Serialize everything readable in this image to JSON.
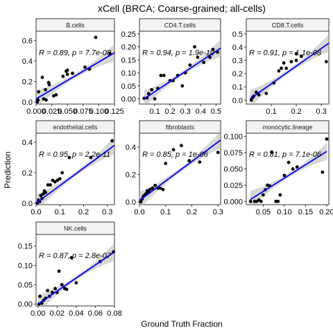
{
  "chart_data": {
    "type": "scatter",
    "title": "xCell (BRCA; Coarse-grained; all-cells)",
    "xlabel": "Ground Truth Fraction",
    "ylabel": "Prediction",
    "fit_color": "#0000ee",
    "point_color": "#000000",
    "band_color": "#bdbdbd",
    "strip_fill": "#f2f2f2",
    "panels": [
      {
        "label": "B.cells",
        "annotation": "R = 0.89, p = 7.7e-08",
        "xlim": [
          0.0,
          0.125
        ],
        "ylim": [
          -0.02,
          0.69
        ],
        "xticks": [
          0.0,
          0.025,
          0.05,
          0.075,
          0.1,
          0.125
        ],
        "xtick_labels": [
          "0.000",
          "0.025",
          "0.050",
          "0.075",
          "0.100",
          "0.125"
        ],
        "yticks": [
          0.0,
          0.2,
          0.4,
          0.6
        ],
        "ytick_labels": [
          "0.0",
          "0.2",
          "0.4",
          "0.6"
        ],
        "fit": [
          [
            0.0,
            0.03
          ],
          [
            0.125,
            0.48
          ]
        ],
        "points": [
          [
            0.002,
            0.0
          ],
          [
            0.003,
            0.02
          ],
          [
            0.004,
            0.1
          ],
          [
            0.01,
            0.24
          ],
          [
            0.012,
            0.03
          ],
          [
            0.015,
            0.12
          ],
          [
            0.016,
            0.02
          ],
          [
            0.02,
            0.19
          ],
          [
            0.021,
            0.17
          ],
          [
            0.028,
            0.06
          ],
          [
            0.032,
            0.07
          ],
          [
            0.043,
            0.25
          ],
          [
            0.048,
            0.3
          ],
          [
            0.05,
            0.31
          ],
          [
            0.05,
            0.27
          ],
          [
            0.058,
            0.28
          ],
          [
            0.078,
            0.34
          ],
          [
            0.085,
            0.32
          ],
          [
            0.095,
            0.63
          ],
          [
            0.118,
            0.47
          ]
        ]
      },
      {
        "label": "CD4.T.cells",
        "annotation": "R = 0.94, p = 1.9e-10",
        "xlim": [
          0.0,
          0.53
        ],
        "ylim": [
          -0.02,
          0.26
        ],
        "xticks": [
          0.1,
          0.2,
          0.3,
          0.4,
          0.5
        ],
        "xtick_labels": [
          "0.1",
          "0.2",
          "0.3",
          "0.4",
          "0.5"
        ],
        "yticks": [
          0.0,
          0.05,
          0.1,
          0.15,
          0.2,
          0.25
        ],
        "ytick_labels": [
          "0.00",
          "0.05",
          "0.10",
          "0.15",
          "0.20",
          "0.25"
        ],
        "fit": [
          [
            0.03,
            0.0
          ],
          [
            0.53,
            0.195
          ]
        ],
        "points": [
          [
            0.03,
            0.002
          ],
          [
            0.05,
            0.004
          ],
          [
            0.06,
            0.02
          ],
          [
            0.08,
            0.035
          ],
          [
            0.1,
            0.0
          ],
          [
            0.12,
            0.04
          ],
          [
            0.14,
            0.09
          ],
          [
            0.16,
            0.09
          ],
          [
            0.2,
            0.07
          ],
          [
            0.22,
            0.07
          ],
          [
            0.25,
            0.09
          ],
          [
            0.28,
            0.05
          ],
          [
            0.3,
            0.1
          ],
          [
            0.33,
            0.13
          ],
          [
            0.36,
            0.2
          ],
          [
            0.38,
            0.16
          ],
          [
            0.42,
            0.14
          ],
          [
            0.46,
            0.16
          ],
          [
            0.48,
            0.19
          ],
          [
            0.51,
            0.18
          ]
        ]
      },
      {
        "label": "CD8.T.cells",
        "annotation": "R = 0.91, p = 1.1e-08",
        "xlim": [
          0.0,
          0.33
        ],
        "ylim": [
          -0.03,
          0.52
        ],
        "xticks": [
          0.1,
          0.2,
          0.3
        ],
        "xtick_labels": [
          "0.1",
          "0.2",
          "0.3"
        ],
        "yticks": [
          0.0,
          0.1,
          0.2,
          0.3,
          0.4,
          0.5
        ],
        "ytick_labels": [
          "0.0",
          "0.1",
          "0.2",
          "0.3",
          "0.4",
          "0.5"
        ],
        "fit": [
          [
            0.015,
            0.01
          ],
          [
            0.33,
            0.43
          ]
        ],
        "points": [
          [
            0.02,
            0.0
          ],
          [
            0.025,
            0.02
          ],
          [
            0.03,
            0.03
          ],
          [
            0.04,
            0.06
          ],
          [
            0.05,
            0.04
          ],
          [
            0.08,
            0.05
          ],
          [
            0.11,
            0.13
          ],
          [
            0.13,
            0.22
          ],
          [
            0.14,
            0.24
          ],
          [
            0.15,
            0.28
          ],
          [
            0.16,
            0.24
          ],
          [
            0.18,
            0.29
          ],
          [
            0.2,
            0.3
          ],
          [
            0.2,
            0.35
          ],
          [
            0.22,
            0.33
          ],
          [
            0.32,
            0.29
          ]
        ]
      },
      {
        "label": "endothelial.cells",
        "annotation": "R = 0.95, p = 2.2e-11",
        "xlim": [
          0.0,
          0.33
        ],
        "ylim": [
          -0.01,
          0.46
        ],
        "xticks": [
          0.0,
          0.1,
          0.2,
          0.3
        ],
        "xtick_labels": [
          "0.0",
          "0.1",
          "0.2",
          "0.3"
        ],
        "yticks": [
          0.0,
          0.2,
          0.4
        ],
        "ytick_labels": [
          "0.0",
          "0.2",
          "0.4"
        ],
        "fit": [
          [
            0.0,
            0.0
          ],
          [
            0.33,
            0.38
          ]
        ],
        "points": [
          [
            0.005,
            0.0
          ],
          [
            0.01,
            0.02
          ],
          [
            0.015,
            0.01
          ],
          [
            0.02,
            0.05
          ],
          [
            0.025,
            0.03
          ],
          [
            0.03,
            0.06
          ],
          [
            0.035,
            0.08
          ],
          [
            0.04,
            0.07
          ],
          [
            0.05,
            0.12
          ],
          [
            0.06,
            0.12
          ],
          [
            0.07,
            0.15
          ],
          [
            0.08,
            0.14
          ],
          [
            0.09,
            0.15
          ],
          [
            0.1,
            0.16
          ],
          [
            0.11,
            0.2
          ],
          [
            0.14,
            0.3
          ],
          [
            0.23,
            0.3
          ],
          [
            0.32,
            0.41
          ]
        ]
      },
      {
        "label": "fibroblasts",
        "annotation": "R = 0.85, p = 1e-06",
        "xlim": [
          0.0,
          0.31
        ],
        "ylim": [
          -0.02,
          0.5
        ],
        "xticks": [
          0.0,
          0.1,
          0.2,
          0.3
        ],
        "xtick_labels": [
          "0.0",
          "0.1",
          "0.2",
          "0.3"
        ],
        "yticks": [
          0.0,
          0.2,
          0.4
        ],
        "ytick_labels": [
          "0.0",
          "0.2",
          "0.4"
        ],
        "fit": [
          [
            0.0,
            0.01
          ],
          [
            0.31,
            0.45
          ]
        ],
        "points": [
          [
            0.005,
            0.0
          ],
          [
            0.01,
            0.02
          ],
          [
            0.015,
            0.04
          ],
          [
            0.02,
            0.05
          ],
          [
            0.025,
            0.06
          ],
          [
            0.03,
            0.08
          ],
          [
            0.035,
            0.07
          ],
          [
            0.04,
            0.09
          ],
          [
            0.05,
            0.1
          ],
          [
            0.06,
            0.12
          ],
          [
            0.07,
            0.1
          ],
          [
            0.08,
            0.1
          ],
          [
            0.09,
            0.09
          ],
          [
            0.1,
            0.28
          ],
          [
            0.13,
            0.38
          ],
          [
            0.16,
            0.41
          ],
          [
            0.19,
            0.3
          ],
          [
            0.23,
            0.29
          ],
          [
            0.3,
            0.36
          ]
        ]
      },
      {
        "label": "monocytic.lineage",
        "annotation": "R = 0.81, p = 7.1e-06",
        "xlim": [
          0.01,
          0.205
        ],
        "ylim": [
          -0.005,
          0.105
        ],
        "xticks": [
          0.05,
          0.1,
          0.15,
          0.2
        ],
        "xtick_labels": [
          "0.05",
          "0.10",
          "0.15",
          "0.20"
        ],
        "yticks": [
          0.0,
          0.025,
          0.05,
          0.075,
          0.1
        ],
        "ytick_labels": [
          "0.000",
          "0.025",
          "0.050",
          "0.075",
          "0.100"
        ],
        "fit": [
          [
            0.02,
            0.003
          ],
          [
            0.2,
            0.077
          ]
        ],
        "points": [
          [
            0.02,
            0.0
          ],
          [
            0.03,
            0.0
          ],
          [
            0.035,
            0.0
          ],
          [
            0.04,
            0.002
          ],
          [
            0.045,
            0.0
          ],
          [
            0.05,
            0.01
          ],
          [
            0.055,
            0.018
          ],
          [
            0.06,
            0.025
          ],
          [
            0.065,
            0.024
          ],
          [
            0.07,
            0.076
          ],
          [
            0.08,
            0.0
          ],
          [
            0.085,
            0.0
          ],
          [
            0.09,
            0.01
          ],
          [
            0.1,
            0.04
          ],
          [
            0.11,
            0.06
          ],
          [
            0.12,
            0.05
          ],
          [
            0.13,
            0.053
          ],
          [
            0.19,
            0.045
          ],
          [
            0.2,
            0.096
          ]
        ]
      },
      {
        "label": "NK.cells",
        "annotation": "R = 0.87, p = 2.8e-07",
        "xlim": [
          -0.002,
          0.08
        ],
        "ylim": [
          -0.005,
          0.18
        ],
        "xticks": [
          0.0,
          0.02,
          0.04,
          0.06,
          0.08
        ],
        "xtick_labels": [
          "0.00",
          "0.02",
          "0.04",
          "0.06",
          "0.08"
        ],
        "yticks": [
          0.0,
          0.05,
          0.1,
          0.15
        ],
        "ytick_labels": [
          "0.00",
          "0.05",
          "0.10",
          "0.15"
        ],
        "fit": [
          [
            0.0,
            0.0
          ],
          [
            0.079,
            0.133
          ]
        ],
        "points": [
          [
            0.001,
            0.0
          ],
          [
            0.002,
            0.02
          ],
          [
            0.004,
            0.002
          ],
          [
            0.006,
            0.01
          ],
          [
            0.008,
            0.015
          ],
          [
            0.01,
            0.035
          ],
          [
            0.012,
            0.02
          ],
          [
            0.015,
            0.03
          ],
          [
            0.018,
            0.04
          ],
          [
            0.02,
            0.03
          ],
          [
            0.022,
            0.085
          ],
          [
            0.025,
            0.05
          ],
          [
            0.028,
            0.04
          ],
          [
            0.03,
            0.038
          ],
          [
            0.035,
            0.12
          ],
          [
            0.04,
            0.055
          ],
          [
            0.065,
            0.11
          ],
          [
            0.079,
            0.135
          ]
        ]
      }
    ]
  }
}
